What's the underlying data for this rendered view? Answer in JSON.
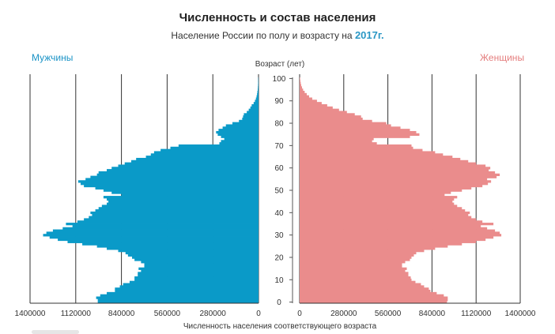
{
  "header": {
    "title": "Численность и состав населения",
    "subtitle_prefix": "Население России по полу и возрасту на",
    "subtitle_year": "2017г."
  },
  "labels": {
    "men": "Мужчины",
    "women": "Женщины"
  },
  "colors": {
    "men": "#0a9ac8",
    "women": "#ea8c8c",
    "grid": "#333333"
  },
  "chart_data": {
    "type": "bar",
    "orientation": "horizontal-population-pyramid",
    "title": "Численность и состав населения",
    "subtitle": "Население России по полу и возрасту на 2017г.",
    "xlabel": "Численность населения соответствующего возраста",
    "ylabel": "Возраст (лет)",
    "xlim": [
      0,
      1400000
    ],
    "ylim": [
      0,
      100
    ],
    "x_ticks_left": [
      "1400000",
      "1120000",
      "840000",
      "560000",
      "280000",
      "0"
    ],
    "x_ticks_right": [
      "0",
      "280000",
      "560000",
      "840000",
      "1120000",
      "1400000"
    ],
    "y_ticks": [
      "0",
      "10",
      "20",
      "30",
      "40",
      "50",
      "60",
      "70",
      "80",
      "90",
      "100"
    ],
    "grid": true,
    "ages": [
      0,
      1,
      2,
      3,
      4,
      5,
      6,
      7,
      8,
      9,
      10,
      11,
      12,
      13,
      14,
      15,
      16,
      17,
      18,
      19,
      20,
      21,
      22,
      23,
      24,
      25,
      26,
      27,
      28,
      29,
      30,
      31,
      32,
      33,
      34,
      35,
      36,
      37,
      38,
      39,
      40,
      41,
      42,
      43,
      44,
      45,
      46,
      47,
      48,
      49,
      50,
      51,
      52,
      53,
      54,
      55,
      56,
      57,
      58,
      59,
      60,
      61,
      62,
      63,
      64,
      65,
      66,
      67,
      68,
      69,
      70,
      71,
      72,
      73,
      74,
      75,
      76,
      77,
      78,
      79,
      80,
      81,
      82,
      83,
      84,
      85,
      86,
      87,
      88,
      89,
      90,
      91,
      92,
      93,
      94,
      95,
      96,
      97,
      98,
      99,
      100
    ],
    "series": [
      {
        "name": "Мужчины",
        "values": [
          985000,
          985000,
          995000,
          970000,
          930000,
          880000,
          880000,
          850000,
          830000,
          790000,
          760000,
          760000,
          740000,
          740000,
          720000,
          735000,
          700000,
          700000,
          720000,
          760000,
          775000,
          800000,
          815000,
          860000,
          930000,
          990000,
          1080000,
          1170000,
          1230000,
          1280000,
          1320000,
          1300000,
          1260000,
          1200000,
          1140000,
          1180000,
          1110000,
          1070000,
          1040000,
          1020000,
          1030000,
          1000000,
          980000,
          960000,
          930000,
          920000,
          930000,
          950000,
          840000,
          900000,
          950000,
          1000000,
          1070000,
          1090000,
          1105000,
          1060000,
          1030000,
          990000,
          980000,
          930000,
          900000,
          860000,
          820000,
          780000,
          750000,
          690000,
          660000,
          640000,
          600000,
          540000,
          490000,
          240000,
          230000,
          210000,
          230000,
          250000,
          260000,
          245000,
          220000,
          200000,
          160000,
          120000,
          100000,
          95000,
          90000,
          72000,
          60000,
          50000,
          42000,
          30000,
          22000,
          16000,
          12000,
          9000,
          7000,
          5000,
          4000,
          3000,
          2500,
          2000,
          1500
        ]
      },
      {
        "name": "Женщины",
        "values": [
          935000,
          940000,
          940000,
          915000,
          870000,
          830000,
          820000,
          790000,
          770000,
          735000,
          710000,
          705000,
          690000,
          690000,
          670000,
          680000,
          650000,
          650000,
          670000,
          700000,
          710000,
          725000,
          740000,
          790000,
          860000,
          940000,
          1030000,
          1120000,
          1180000,
          1230000,
          1280000,
          1270000,
          1240000,
          1190000,
          1150000,
          1230000,
          1160000,
          1120000,
          1090000,
          1070000,
          1080000,
          1050000,
          1030000,
          1000000,
          980000,
          970000,
          980000,
          1000000,
          920000,
          960000,
          1030000,
          1090000,
          1160000,
          1195000,
          1215000,
          1190000,
          1250000,
          1270000,
          1240000,
          1200000,
          1210000,
          1180000,
          1120000,
          1070000,
          1020000,
          970000,
          910000,
          860000,
          780000,
          720000,
          710000,
          490000,
          460000,
          470000,
          700000,
          760000,
          740000,
          700000,
          640000,
          580000,
          550000,
          460000,
          400000,
          390000,
          350000,
          300000,
          250000,
          210000,
          175000,
          140000,
          110000,
          80000,
          60000,
          45000,
          32000,
          22000,
          15000,
          10000,
          7000,
          4500,
          3000
        ]
      }
    ]
  }
}
